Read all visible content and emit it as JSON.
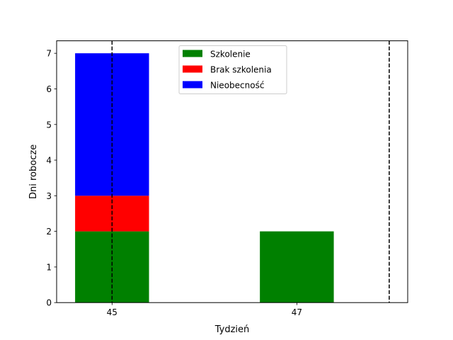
{
  "chart_data": {
    "type": "bar",
    "stacked": true,
    "title": "",
    "xlabel": "Tydzień",
    "ylabel": "Dni robocze",
    "x_ticks": [
      "45",
      "47"
    ],
    "y_ticks": [
      "0",
      "1",
      "2",
      "3",
      "4",
      "5",
      "6",
      "7"
    ],
    "xlim": [
      44.4,
      48.2
    ],
    "ylim": [
      0,
      7.35
    ],
    "bar_width_weeks": 0.8,
    "grid": false,
    "legend_position": "upper center",
    "series": [
      {
        "name": "Szkolenie",
        "color": "#008000",
        "points": [
          {
            "x": 45,
            "value": 2
          },
          {
            "x": 47,
            "value": 2
          }
        ]
      },
      {
        "name": "Brak szkolenia",
        "color": "#ff0000",
        "points": [
          {
            "x": 45,
            "value": 1
          }
        ]
      },
      {
        "name": "Nieobecność",
        "color": "#0000ff",
        "points": [
          {
            "x": 45,
            "value": 4
          }
        ]
      }
    ],
    "reference_lines": [
      {
        "orientation": "vertical",
        "x": 45,
        "style": "dashed",
        "color": "#000000"
      },
      {
        "orientation": "vertical",
        "x": 48,
        "style": "dashed",
        "color": "#000000"
      }
    ]
  }
}
